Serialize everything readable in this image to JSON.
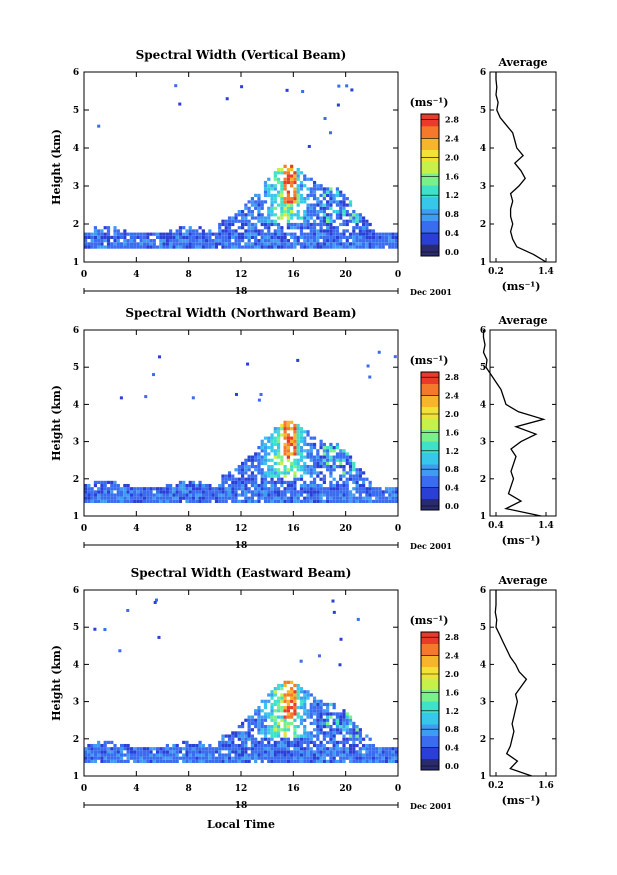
{
  "chart_data": [
    {
      "type": "heatmap",
      "title": "Spectral Width (Vertical Beam)",
      "ylabel": "Height (km)",
      "y_ticks": [
        "1",
        "2",
        "3",
        "4",
        "5",
        "6"
      ],
      "ylim": [
        1,
        6
      ],
      "x_ticks": [
        "0",
        "4",
        "8",
        "12",
        "16",
        "20",
        "0"
      ],
      "xlim": [
        0,
        24
      ],
      "date_axis": {
        "label": "18",
        "suffix": "Dec 2001"
      },
      "colorbar": {
        "unit": "(ms⁻¹)",
        "ticks": [
          "0.0",
          "0.4",
          "0.8",
          "1.2",
          "1.6",
          "2.0",
          "2.4",
          "2.8"
        ],
        "range": [
          0,
          3.0
        ]
      },
      "average": {
        "title": "Average",
        "xlabel": "(ms⁻¹)",
        "x_ticks": [
          "0.2",
          "1.4"
        ],
        "y_ticks": [
          "1",
          "2",
          "3",
          "4",
          "5",
          "6"
        ],
        "profile": [
          [
            1.0,
            1.4
          ],
          [
            1.2,
            1.1
          ],
          [
            1.4,
            0.7
          ],
          [
            1.6,
            0.6
          ],
          [
            1.8,
            0.55
          ],
          [
            2.0,
            0.6
          ],
          [
            2.2,
            0.55
          ],
          [
            2.4,
            0.55
          ],
          [
            2.6,
            0.6
          ],
          [
            2.8,
            0.55
          ],
          [
            3.0,
            0.75
          ],
          [
            3.2,
            0.9
          ],
          [
            3.4,
            0.8
          ],
          [
            3.6,
            0.65
          ],
          [
            3.8,
            0.85
          ],
          [
            4.0,
            0.7
          ],
          [
            4.2,
            0.65
          ],
          [
            4.4,
            0.6
          ],
          [
            4.6,
            0.45
          ],
          [
            4.8,
            0.3
          ],
          [
            5.0,
            0.22
          ],
          [
            5.2,
            0.25
          ],
          [
            5.4,
            0.2
          ],
          [
            5.6,
            0.22
          ],
          [
            5.8,
            0.2
          ],
          [
            6.0,
            0.2
          ]
        ]
      }
    },
    {
      "type": "heatmap",
      "title": "Spectral Width (Northward Beam)",
      "ylabel": "Height (km)",
      "y_ticks": [
        "1",
        "2",
        "3",
        "4",
        "5",
        "6"
      ],
      "ylim": [
        1,
        6
      ],
      "x_ticks": [
        "0",
        "4",
        "8",
        "12",
        "16",
        "20",
        "0"
      ],
      "xlim": [
        0,
        24
      ],
      "date_axis": {
        "label": "18",
        "suffix": "Dec 2001"
      },
      "colorbar": {
        "unit": "(ms⁻¹)",
        "ticks": [
          "0.0",
          "0.4",
          "0.8",
          "1.2",
          "1.6",
          "2.0",
          "2.4",
          "2.8"
        ],
        "range": [
          0,
          3.0
        ]
      },
      "average": {
        "title": "Average",
        "xlabel": "(ms⁻¹)",
        "x_ticks": [
          "0.4",
          "1.4"
        ],
        "y_ticks": [
          "1",
          "2",
          "3",
          "4",
          "5",
          "6"
        ],
        "profile": [
          [
            1.0,
            1.3
          ],
          [
            1.2,
            0.6
          ],
          [
            1.4,
            0.9
          ],
          [
            1.6,
            0.65
          ],
          [
            1.8,
            0.7
          ],
          [
            2.0,
            0.75
          ],
          [
            2.2,
            0.7
          ],
          [
            2.4,
            0.75
          ],
          [
            2.6,
            0.8
          ],
          [
            2.8,
            0.7
          ],
          [
            3.0,
            0.9
          ],
          [
            3.2,
            1.2
          ],
          [
            3.4,
            0.8
          ],
          [
            3.6,
            1.35
          ],
          [
            3.8,
            0.85
          ],
          [
            4.0,
            0.6
          ],
          [
            4.2,
            0.55
          ],
          [
            4.4,
            0.5
          ],
          [
            4.6,
            0.4
          ],
          [
            4.8,
            0.3
          ],
          [
            5.0,
            0.2
          ],
          [
            5.2,
            0.22
          ],
          [
            5.4,
            0.15
          ],
          [
            5.6,
            0.18
          ],
          [
            5.8,
            0.15
          ],
          [
            6.0,
            0.15
          ]
        ]
      }
    },
    {
      "type": "heatmap",
      "title": "Spectral Width (Eastward Beam)",
      "ylabel": "Height (km)",
      "xlabel": "Local Time",
      "y_ticks": [
        "1",
        "2",
        "3",
        "4",
        "5",
        "6"
      ],
      "ylim": [
        1,
        6
      ],
      "x_ticks": [
        "0",
        "4",
        "8",
        "12",
        "16",
        "20",
        "0"
      ],
      "xlim": [
        0,
        24
      ],
      "date_axis": {
        "label": "18",
        "suffix": "Dec 2001"
      },
      "colorbar": {
        "unit": "(ms⁻¹)",
        "ticks": [
          "0.0",
          "0.4",
          "0.8",
          "1.2",
          "1.6",
          "2.0",
          "2.4",
          "2.8"
        ],
        "range": [
          0,
          3.0
        ]
      },
      "average": {
        "title": "Average",
        "xlabel": "(ms⁻¹)",
        "x_ticks": [
          "0.2",
          "1.6"
        ],
        "y_ticks": [
          "1",
          "2",
          "3",
          "4",
          "5",
          "6"
        ],
        "profile": [
          [
            1.0,
            1.2
          ],
          [
            1.2,
            0.6
          ],
          [
            1.4,
            0.8
          ],
          [
            1.6,
            0.5
          ],
          [
            1.8,
            0.6
          ],
          [
            2.0,
            0.65
          ],
          [
            2.2,
            0.7
          ],
          [
            2.4,
            0.65
          ],
          [
            2.6,
            0.7
          ],
          [
            2.8,
            0.75
          ],
          [
            3.0,
            0.8
          ],
          [
            3.2,
            0.75
          ],
          [
            3.4,
            0.9
          ],
          [
            3.6,
            1.05
          ],
          [
            3.8,
            0.85
          ],
          [
            4.0,
            0.75
          ],
          [
            4.2,
            0.6
          ],
          [
            4.4,
            0.5
          ],
          [
            4.6,
            0.4
          ],
          [
            4.8,
            0.3
          ],
          [
            5.0,
            0.2
          ],
          [
            5.2,
            0.22
          ],
          [
            5.4,
            0.18
          ],
          [
            5.6,
            0.2
          ],
          [
            5.8,
            0.2
          ],
          [
            6.0,
            0.2
          ]
        ]
      }
    }
  ],
  "colors": {
    "scale": [
      "#2a2a6e",
      "#2a3fd6",
      "#3a6cf0",
      "#3f9cf2",
      "#36c7ea",
      "#3fe2c9",
      "#7bf08a",
      "#c6f04a",
      "#f2e236",
      "#f7b52c",
      "#f4792a",
      "#ea3b2a"
    ]
  }
}
